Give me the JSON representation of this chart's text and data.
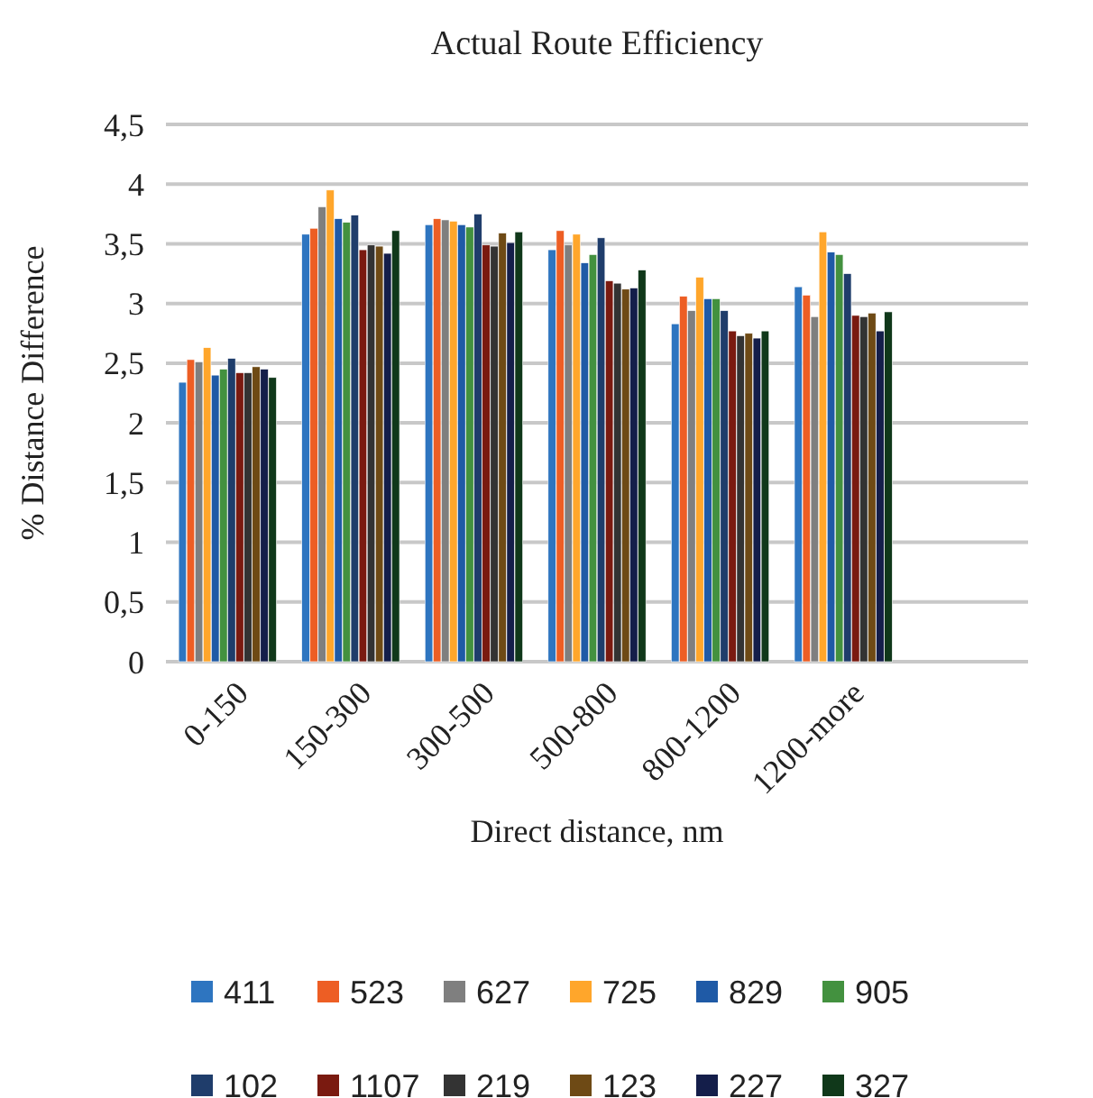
{
  "chart_data": {
    "type": "bar",
    "title": "Actual Route Efficiency",
    "xlabel": "Direct distance, nm",
    "ylabel": "% Distance Difference",
    "categories": [
      "0-150",
      "150-300",
      "300-500",
      "500-800",
      "800-1200",
      "1200-more",
      null
    ],
    "ylim": [
      0,
      4.5
    ],
    "yticks": [
      0,
      {
        "value": 0.5,
        "label": "0,5"
      },
      1,
      {
        "value": 1.5,
        "label": "1,5"
      },
      2,
      {
        "value": 2.5,
        "label": "2,5"
      },
      3,
      {
        "value": 3.5,
        "label": "3,5"
      },
      4,
      {
        "value": 4.5,
        "label": "4,5"
      }
    ],
    "grid": "y",
    "legend": "bottom",
    "series": [
      {
        "name": "411",
        "color": "#2e75c0",
        "values": [
          2.34,
          3.58,
          3.66,
          3.45,
          2.83,
          3.14,
          null
        ]
      },
      {
        "name": "523",
        "color": "#ed5e24",
        "values": [
          2.53,
          3.63,
          3.71,
          3.61,
          3.06,
          3.07,
          null
        ]
      },
      {
        "name": "627",
        "color": "#7f7f7f",
        "values": [
          2.51,
          3.81,
          3.7,
          3.49,
          2.94,
          2.89,
          null
        ]
      },
      {
        "name": "725",
        "color": "#ffa62b",
        "values": [
          2.63,
          3.95,
          3.69,
          3.58,
          3.22,
          3.6,
          null
        ]
      },
      {
        "name": "829",
        "color": "#1f5aa6",
        "values": [
          2.4,
          3.71,
          3.66,
          3.34,
          3.04,
          3.43,
          null
        ]
      },
      {
        "name": "905",
        "color": "#43913f",
        "values": [
          2.45,
          3.68,
          3.64,
          3.41,
          3.04,
          3.41,
          null
        ]
      },
      {
        "name": "102",
        "color": "#1f3d6b",
        "values": [
          2.54,
          3.74,
          3.75,
          3.55,
          2.94,
          3.25,
          null
        ]
      },
      {
        "name": "1107",
        "color": "#7a1a10",
        "values": [
          2.42,
          3.45,
          3.49,
          3.19,
          2.77,
          2.9,
          null
        ]
      },
      {
        "name": "219",
        "color": "#333333",
        "values": [
          2.42,
          3.49,
          3.48,
          3.17,
          2.73,
          2.89,
          null
        ]
      },
      {
        "name": "123",
        "color": "#6e4a15",
        "values": [
          2.47,
          3.48,
          3.59,
          3.12,
          2.75,
          2.92,
          null
        ]
      },
      {
        "name": "227",
        "color": "#141e4a",
        "values": [
          2.45,
          3.42,
          3.51,
          3.13,
          2.71,
          2.77,
          null
        ]
      },
      {
        "name": "327",
        "color": "#10381a",
        "values": [
          2.38,
          3.61,
          3.6,
          3.28,
          2.77,
          2.93,
          null
        ]
      }
    ]
  }
}
